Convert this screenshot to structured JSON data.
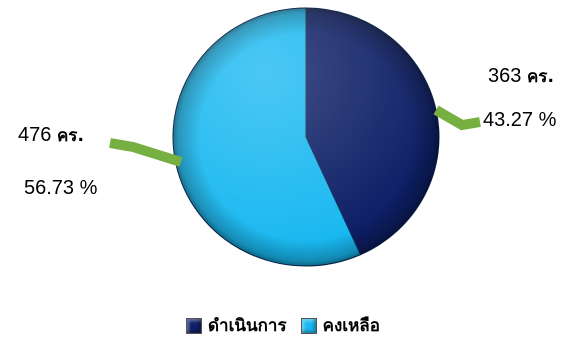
{
  "chart_data": {
    "type": "pie",
    "title": "",
    "series": [
      {
        "name": "ดำเนินการ",
        "count": 363,
        "unit": "คร.",
        "percent": "43.27 %",
        "color": "#0d1f66"
      },
      {
        "name": "คงเหลือ",
        "count": 476,
        "unit": "คร.",
        "percent": "56.73 %",
        "color": "#19b8f0"
      }
    ],
    "leader_color": "#76b041",
    "legend_position": "bottom"
  }
}
